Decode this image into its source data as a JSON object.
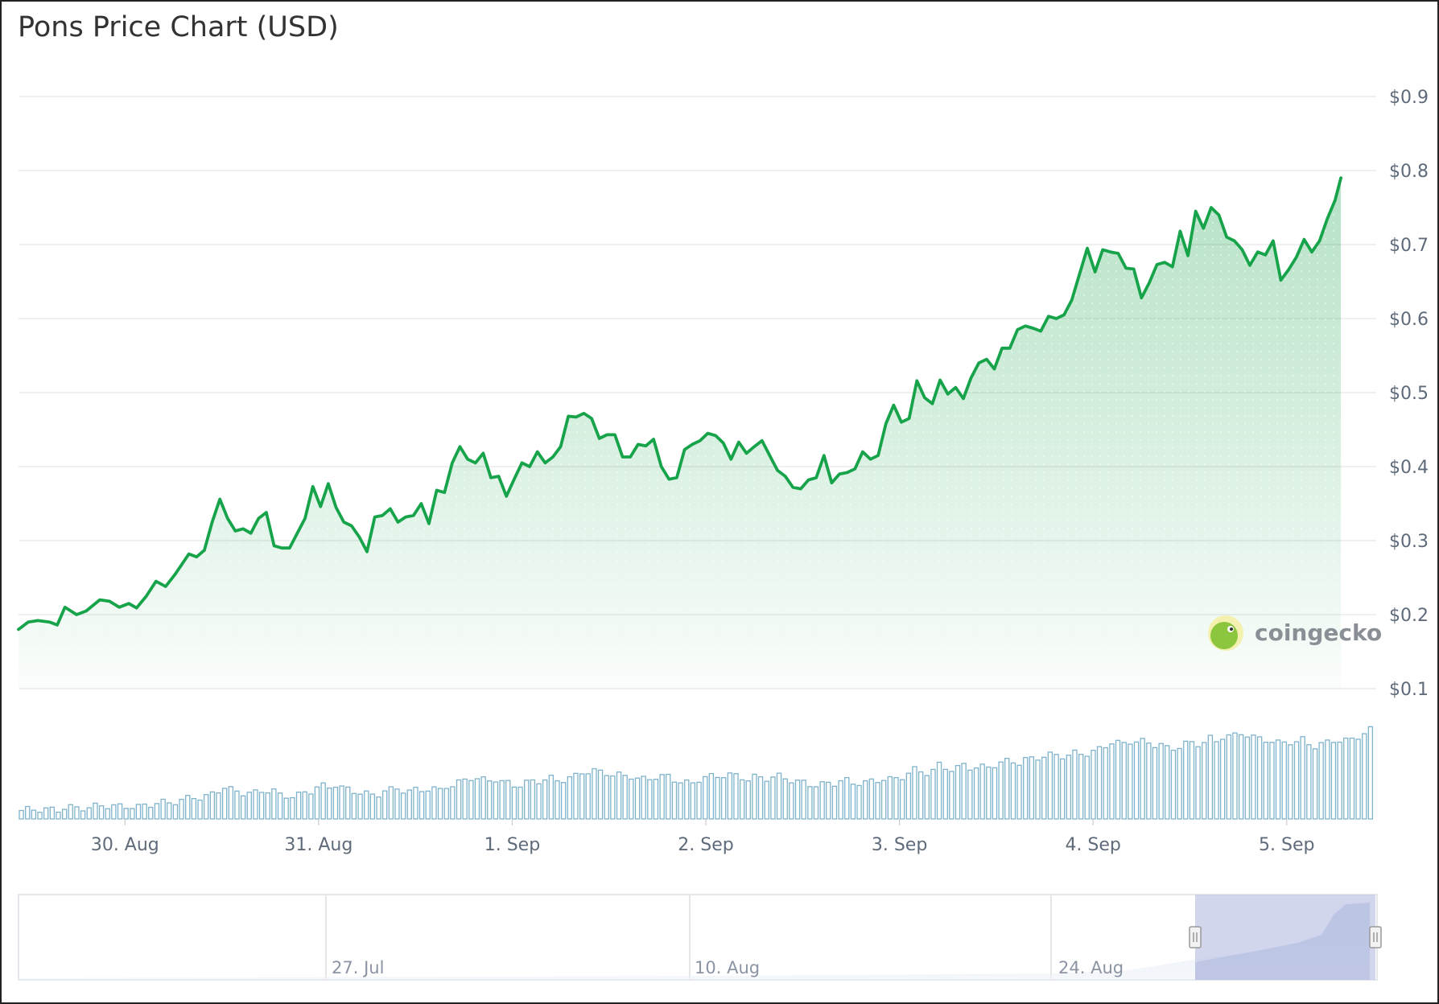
{
  "title": "Pons Price Chart (USD)",
  "watermark": "coingecko",
  "colors": {
    "line": "#16a34a",
    "area_top": "#16a34a",
    "volume": "#7fb3cc",
    "navigator_mask": "#c5cce8",
    "grid": "#e6e6e6"
  },
  "chart_data": {
    "type": "line",
    "ylim": [
      0.1,
      0.9
    ],
    "yticks": [
      {
        "value": 0.9,
        "label": "$0.9"
      },
      {
        "value": 0.8,
        "label": "$0.8"
      },
      {
        "value": 0.7,
        "label": "$0.7"
      },
      {
        "value": 0.6,
        "label": "$0.6"
      },
      {
        "value": 0.5,
        "label": "$0.5"
      },
      {
        "value": 0.4,
        "label": "$0.4"
      },
      {
        "value": 0.3,
        "label": "$0.3"
      },
      {
        "value": 0.2,
        "label": "$0.2"
      },
      {
        "value": 0.1,
        "label": "$0.1"
      }
    ],
    "x_unit": "days",
    "xrange": [
      0,
      7.0
    ],
    "xticks": [
      {
        "x": 0.55,
        "label": "30. Aug"
      },
      {
        "x": 1.55,
        "label": "31. Aug"
      },
      {
        "x": 2.55,
        "label": "1. Sep"
      },
      {
        "x": 3.55,
        "label": "2. Sep"
      },
      {
        "x": 4.55,
        "label": "3. Sep"
      },
      {
        "x": 5.55,
        "label": "4. Sep"
      },
      {
        "x": 6.55,
        "label": "5. Sep"
      }
    ],
    "price_points": [
      [
        0.0,
        0.18
      ],
      [
        0.05,
        0.19
      ],
      [
        0.1,
        0.192
      ],
      [
        0.16,
        0.19
      ],
      [
        0.2,
        0.186
      ],
      [
        0.24,
        0.21
      ],
      [
        0.3,
        0.2
      ],
      [
        0.35,
        0.205
      ],
      [
        0.42,
        0.22
      ],
      [
        0.47,
        0.218
      ],
      [
        0.52,
        0.21
      ],
      [
        0.57,
        0.215
      ],
      [
        0.61,
        0.209
      ],
      [
        0.66,
        0.225
      ],
      [
        0.71,
        0.245
      ],
      [
        0.76,
        0.238
      ],
      [
        0.81,
        0.255
      ],
      [
        0.88,
        0.282
      ],
      [
        0.92,
        0.278
      ],
      [
        0.96,
        0.287
      ],
      [
        1.0,
        0.325
      ],
      [
        1.04,
        0.356
      ],
      [
        1.08,
        0.33
      ],
      [
        1.12,
        0.313
      ],
      [
        1.16,
        0.316
      ],
      [
        1.2,
        0.31
      ],
      [
        1.24,
        0.33
      ],
      [
        1.28,
        0.338
      ],
      [
        1.32,
        0.293
      ],
      [
        1.36,
        0.29
      ],
      [
        1.4,
        0.29
      ],
      [
        1.44,
        0.31
      ],
      [
        1.48,
        0.33
      ],
      [
        1.52,
        0.373
      ],
      [
        1.56,
        0.346
      ],
      [
        1.6,
        0.377
      ],
      [
        1.64,
        0.345
      ],
      [
        1.68,
        0.325
      ],
      [
        1.72,
        0.32
      ],
      [
        1.76,
        0.305
      ],
      [
        1.8,
        0.285
      ],
      [
        1.84,
        0.332
      ],
      [
        1.88,
        0.334
      ],
      [
        1.92,
        0.343
      ],
      [
        1.96,
        0.325
      ],
      [
        2.0,
        0.332
      ],
      [
        2.04,
        0.334
      ],
      [
        2.08,
        0.35
      ],
      [
        2.12,
        0.323
      ],
      [
        2.16,
        0.368
      ],
      [
        2.2,
        0.365
      ],
      [
        2.24,
        0.405
      ],
      [
        2.28,
        0.427
      ],
      [
        2.32,
        0.41
      ],
      [
        2.36,
        0.405
      ],
      [
        2.4,
        0.418
      ],
      [
        2.44,
        0.385
      ],
      [
        2.48,
        0.387
      ],
      [
        2.52,
        0.36
      ],
      [
        2.56,
        0.383
      ],
      [
        2.6,
        0.405
      ],
      [
        2.64,
        0.4
      ],
      [
        2.68,
        0.42
      ],
      [
        2.72,
        0.405
      ],
      [
        2.76,
        0.413
      ],
      [
        2.8,
        0.427
      ],
      [
        2.84,
        0.468
      ],
      [
        2.88,
        0.467
      ],
      [
        2.92,
        0.472
      ],
      [
        2.96,
        0.465
      ],
      [
        3.0,
        0.438
      ],
      [
        3.04,
        0.443
      ],
      [
        3.08,
        0.443
      ],
      [
        3.12,
        0.413
      ],
      [
        3.16,
        0.413
      ],
      [
        3.2,
        0.43
      ],
      [
        3.24,
        0.428
      ],
      [
        3.28,
        0.437
      ],
      [
        3.32,
        0.4
      ],
      [
        3.36,
        0.383
      ],
      [
        3.4,
        0.385
      ],
      [
        3.44,
        0.423
      ],
      [
        3.48,
        0.43
      ],
      [
        3.52,
        0.435
      ],
      [
        3.56,
        0.445
      ],
      [
        3.6,
        0.442
      ],
      [
        3.64,
        0.432
      ],
      [
        3.68,
        0.41
      ],
      [
        3.72,
        0.433
      ],
      [
        3.76,
        0.418
      ],
      [
        3.8,
        0.427
      ],
      [
        3.84,
        0.435
      ],
      [
        3.88,
        0.415
      ],
      [
        3.92,
        0.395
      ],
      [
        3.96,
        0.387
      ],
      [
        4.0,
        0.372
      ],
      [
        4.04,
        0.37
      ],
      [
        4.08,
        0.382
      ],
      [
        4.12,
        0.385
      ],
      [
        4.16,
        0.415
      ],
      [
        4.2,
        0.378
      ],
      [
        4.24,
        0.39
      ],
      [
        4.28,
        0.392
      ],
      [
        4.32,
        0.397
      ],
      [
        4.36,
        0.42
      ],
      [
        4.4,
        0.41
      ],
      [
        4.44,
        0.415
      ],
      [
        4.48,
        0.458
      ],
      [
        4.52,
        0.483
      ],
      [
        4.56,
        0.46
      ],
      [
        4.6,
        0.465
      ],
      [
        4.64,
        0.516
      ],
      [
        4.68,
        0.493
      ],
      [
        4.72,
        0.485
      ],
      [
        4.76,
        0.517
      ],
      [
        4.8,
        0.498
      ],
      [
        4.84,
        0.507
      ],
      [
        4.88,
        0.492
      ],
      [
        4.92,
        0.52
      ],
      [
        4.96,
        0.54
      ],
      [
        5.0,
        0.545
      ],
      [
        5.04,
        0.532
      ],
      [
        5.08,
        0.56
      ],
      [
        5.12,
        0.56
      ],
      [
        5.16,
        0.585
      ],
      [
        5.2,
        0.59
      ],
      [
        5.24,
        0.587
      ],
      [
        5.28,
        0.583
      ],
      [
        5.32,
        0.603
      ],
      [
        5.36,
        0.6
      ],
      [
        5.4,
        0.605
      ],
      [
        5.44,
        0.625
      ],
      [
        5.48,
        0.66
      ],
      [
        5.52,
        0.695
      ],
      [
        5.56,
        0.663
      ],
      [
        5.6,
        0.693
      ],
      [
        5.64,
        0.69
      ],
      [
        5.68,
        0.688
      ],
      [
        5.72,
        0.668
      ],
      [
        5.76,
        0.667
      ],
      [
        5.8,
        0.628
      ],
      [
        5.84,
        0.648
      ],
      [
        5.88,
        0.673
      ],
      [
        5.92,
        0.676
      ],
      [
        5.96,
        0.67
      ],
      [
        6.0,
        0.718
      ],
      [
        6.04,
        0.685
      ],
      [
        6.08,
        0.745
      ],
      [
        6.12,
        0.722
      ],
      [
        6.16,
        0.75
      ],
      [
        6.2,
        0.74
      ],
      [
        6.24,
        0.71
      ],
      [
        6.28,
        0.705
      ],
      [
        6.32,
        0.693
      ],
      [
        6.36,
        0.672
      ],
      [
        6.4,
        0.69
      ],
      [
        6.44,
        0.686
      ],
      [
        6.48,
        0.705
      ],
      [
        6.52,
        0.652
      ],
      [
        6.56,
        0.666
      ],
      [
        6.6,
        0.683
      ],
      [
        6.64,
        0.707
      ],
      [
        6.68,
        0.69
      ],
      [
        6.72,
        0.705
      ],
      [
        6.76,
        0.735
      ],
      [
        6.8,
        0.76
      ],
      [
        6.83,
        0.79
      ]
    ],
    "volume_count": 220
  },
  "navigator": {
    "labels": [
      "27. Jul",
      "10. Aug",
      "24. Aug"
    ]
  }
}
